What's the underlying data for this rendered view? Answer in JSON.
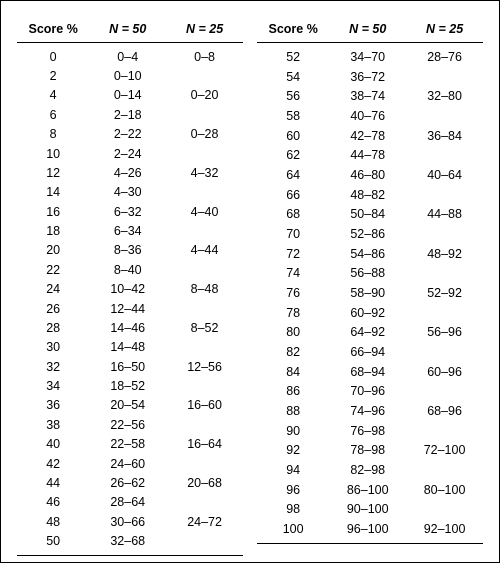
{
  "headers": {
    "score": "Score %",
    "n50": "N = 50",
    "n25": "N = 25"
  },
  "left": {
    "rows": [
      {
        "score": "0",
        "n50": "0–4",
        "n25": "0–8"
      },
      {
        "score": "2",
        "n50": "0–10",
        "n25": ""
      },
      {
        "score": "4",
        "n50": "0–14",
        "n25": "0–20"
      },
      {
        "score": "6",
        "n50": "2–18",
        "n25": ""
      },
      {
        "score": "8",
        "n50": "2–22",
        "n25": "0–28"
      },
      {
        "score": "10",
        "n50": "2–24",
        "n25": ""
      },
      {
        "score": "12",
        "n50": "4–26",
        "n25": "4–32"
      },
      {
        "score": "14",
        "n50": "4–30",
        "n25": ""
      },
      {
        "score": "16",
        "n50": "6–32",
        "n25": "4–40"
      },
      {
        "score": "18",
        "n50": "6–34",
        "n25": ""
      },
      {
        "score": "20",
        "n50": "8–36",
        "n25": "4–44"
      },
      {
        "score": "22",
        "n50": "8–40",
        "n25": ""
      },
      {
        "score": "24",
        "n50": "10–42",
        "n25": "8–48"
      },
      {
        "score": "26",
        "n50": "12–44",
        "n25": ""
      },
      {
        "score": "28",
        "n50": "14–46",
        "n25": "8–52"
      },
      {
        "score": "30",
        "n50": "14–48",
        "n25": ""
      },
      {
        "score": "32",
        "n50": "16–50",
        "n25": "12–56"
      },
      {
        "score": "34",
        "n50": "18–52",
        "n25": ""
      },
      {
        "score": "36",
        "n50": "20–54",
        "n25": "16–60"
      },
      {
        "score": "38",
        "n50": "22–56",
        "n25": ""
      },
      {
        "score": "40",
        "n50": "22–58",
        "n25": "16–64"
      },
      {
        "score": "42",
        "n50": "24–60",
        "n25": ""
      },
      {
        "score": "44",
        "n50": "26–62",
        "n25": "20–68"
      },
      {
        "score": "46",
        "n50": "28–64",
        "n25": ""
      },
      {
        "score": "48",
        "n50": "30–66",
        "n25": "24–72"
      },
      {
        "score": "50",
        "n50": "32–68",
        "n25": ""
      }
    ]
  },
  "right": {
    "rows": [
      {
        "score": "52",
        "n50": "34–70",
        "n25": "28–76"
      },
      {
        "score": "54",
        "n50": "36–72",
        "n25": ""
      },
      {
        "score": "56",
        "n50": "38–74",
        "n25": "32–80"
      },
      {
        "score": "58",
        "n50": "40–76",
        "n25": ""
      },
      {
        "score": "60",
        "n50": "42–78",
        "n25": "36–84"
      },
      {
        "score": "62",
        "n50": "44–78",
        "n25": ""
      },
      {
        "score": "64",
        "n50": "46–80",
        "n25": "40–64"
      },
      {
        "score": "66",
        "n50": "48–82",
        "n25": ""
      },
      {
        "score": "68",
        "n50": "50–84",
        "n25": "44–88"
      },
      {
        "score": "70",
        "n50": "52–86",
        "n25": ""
      },
      {
        "score": "72",
        "n50": "54–86",
        "n25": "48–92"
      },
      {
        "score": "74",
        "n50": "56–88",
        "n25": ""
      },
      {
        "score": "76",
        "n50": "58–90",
        "n25": "52–92"
      },
      {
        "score": "78",
        "n50": "60–92",
        "n25": ""
      },
      {
        "score": "80",
        "n50": "64–92",
        "n25": "56–96"
      },
      {
        "score": "82",
        "n50": "66–94",
        "n25": ""
      },
      {
        "score": "84",
        "n50": "68–94",
        "n25": "60–96"
      },
      {
        "score": "86",
        "n50": "70–96",
        "n25": ""
      },
      {
        "score": "88",
        "n50": "74–96",
        "n25": "68–96"
      },
      {
        "score": "90",
        "n50": "76–98",
        "n25": ""
      },
      {
        "score": "92",
        "n50": "78–98",
        "n25": "72–100"
      },
      {
        "score": "94",
        "n50": "82–98",
        "n25": ""
      },
      {
        "score": "96",
        "n50": "86–100",
        "n25": "80–100"
      },
      {
        "score": "98",
        "n50": "90–100",
        "n25": ""
      },
      {
        "score": "100",
        "n50": "96–100",
        "n25": "92–100"
      }
    ]
  },
  "style": {
    "font_family": "Arial",
    "font_size_pt": 9,
    "text_color": "#000000",
    "background_color": "#ffffff",
    "rule_color": "#000000"
  }
}
